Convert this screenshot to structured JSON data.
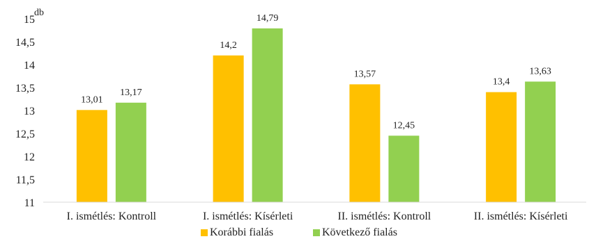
{
  "chart_data": {
    "type": "bar",
    "unit_label": "db",
    "categories": [
      "I. ismétlés: Kontroll",
      "I. ismétlés: Kísérleti",
      "II. ismétlés: Kontroll",
      "II. ismétlés: Kísérleti"
    ],
    "series": [
      {
        "name": "Korábbi fialás",
        "color": "#FFC000",
        "values": [
          13.01,
          14.2,
          13.57,
          13.4
        ],
        "labels": [
          "13,01",
          "14,2",
          "13,57",
          "13,4"
        ]
      },
      {
        "name": "Következő fialás",
        "color": "#92D050",
        "values": [
          13.17,
          14.79,
          12.45,
          13.63
        ],
        "labels": [
          "13,17",
          "14,79",
          "12,45",
          "13,63"
        ]
      }
    ],
    "ylim": [
      11,
      15
    ],
    "yticks": [
      "11",
      "11,5",
      "12",
      "12,5",
      "13",
      "13,5",
      "14",
      "14,5",
      "15"
    ],
    "ytick_values": [
      11,
      11.5,
      12,
      12.5,
      13,
      13.5,
      14,
      14.5,
      15
    ],
    "grid": false,
    "legend_position": "bottom"
  }
}
